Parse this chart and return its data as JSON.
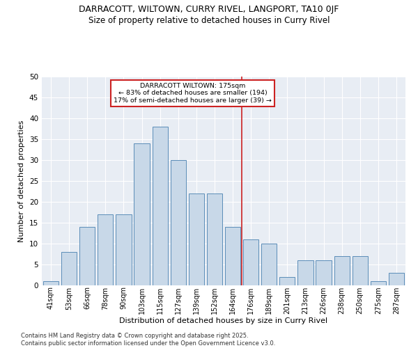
{
  "title_line1": "DARRACOTT, WILTOWN, CURRY RIVEL, LANGPORT, TA10 0JF",
  "title_line2": "Size of property relative to detached houses in Curry Rivel",
  "xlabel": "Distribution of detached houses by size in Curry Rivel",
  "ylabel": "Number of detached properties",
  "categories": [
    "41sqm",
    "53sqm",
    "66sqm",
    "78sqm",
    "90sqm",
    "103sqm",
    "115sqm",
    "127sqm",
    "139sqm",
    "152sqm",
    "164sqm",
    "176sqm",
    "189sqm",
    "201sqm",
    "213sqm",
    "226sqm",
    "238sqm",
    "250sqm",
    "275sqm",
    "287sqm"
  ],
  "values": [
    1,
    8,
    14,
    17,
    17,
    34,
    38,
    30,
    22,
    22,
    14,
    11,
    10,
    2,
    6,
    6,
    7,
    7,
    1,
    3
  ],
  "bar_color": "#c8d8e8",
  "bar_edge_color": "#5b8db8",
  "marker_color": "#cc2222",
  "annotation_line1": "DARRACOTT WILTOWN: 175sqm",
  "annotation_line2": "← 83% of detached houses are smaller (194)",
  "annotation_line3": "17% of semi-detached houses are larger (39) →",
  "ylim": [
    0,
    50
  ],
  "yticks": [
    0,
    5,
    10,
    15,
    20,
    25,
    30,
    35,
    40,
    45,
    50
  ],
  "background_color": "#e8edf4",
  "footer_line1": "Contains HM Land Registry data © Crown copyright and database right 2025.",
  "footer_line2": "Contains public sector information licensed under the Open Government Licence v3.0."
}
